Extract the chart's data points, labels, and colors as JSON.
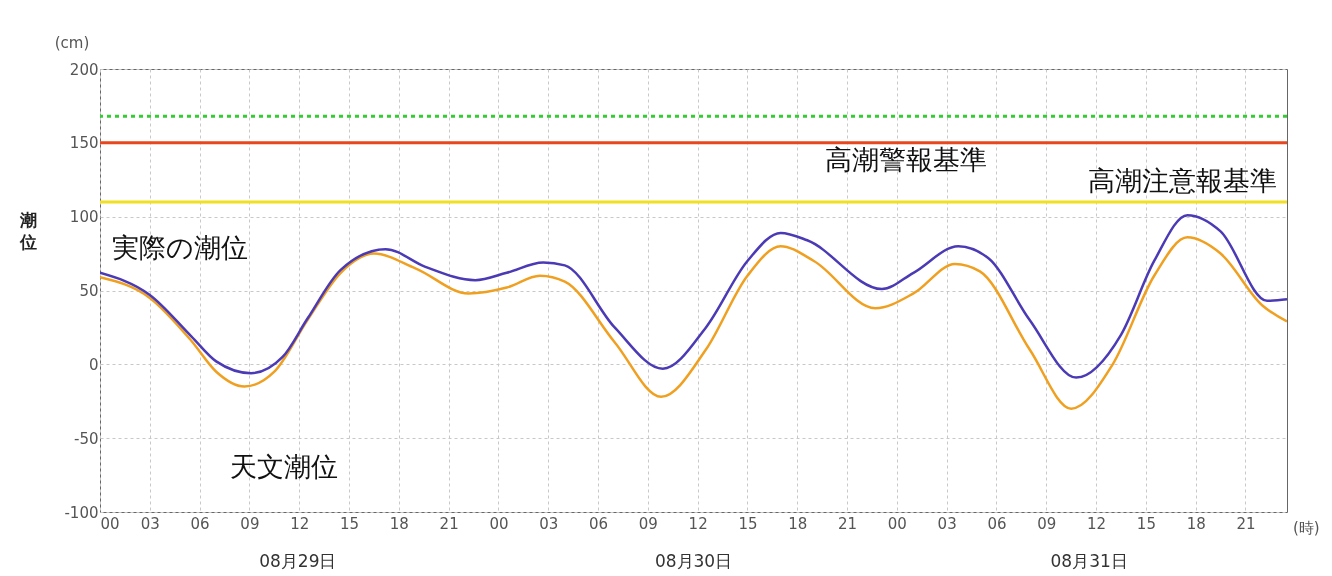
{
  "chart_data": {
    "type": "line",
    "ylabel": "潮位",
    "xlabel": "(時)",
    "annotations": [
      "(cm)",
      "08月29日",
      "08月30日",
      "08月31日"
    ],
    "xlim": [
      0,
      71.5
    ],
    "xticks": [
      {
        "value": 0,
        "label": "00"
      },
      {
        "value": 3,
        "label": "03"
      },
      {
        "value": 6,
        "label": "06"
      },
      {
        "value": 9,
        "label": "09"
      },
      {
        "value": 12,
        "label": "12"
      },
      {
        "value": 15,
        "label": "15"
      },
      {
        "value": 18,
        "label": "18"
      },
      {
        "value": 21,
        "label": "21"
      },
      {
        "value": 24,
        "label": "00"
      },
      {
        "value": 27,
        "label": "03"
      },
      {
        "value": 30,
        "label": "06"
      },
      {
        "value": 33,
        "label": "09"
      },
      {
        "value": 36,
        "label": "12"
      },
      {
        "value": 39,
        "label": "15"
      },
      {
        "value": 42,
        "label": "18"
      },
      {
        "value": 45,
        "label": "21"
      },
      {
        "value": 48,
        "label": "00"
      },
      {
        "value": 51,
        "label": "03"
      },
      {
        "value": 54,
        "label": "06"
      },
      {
        "value": 57,
        "label": "09"
      },
      {
        "value": 60,
        "label": "12"
      },
      {
        "value": 63,
        "label": "15"
      },
      {
        "value": 66,
        "label": "18"
      },
      {
        "value": 69,
        "label": "21"
      }
    ],
    "ylim": [
      -100,
      200
    ],
    "yticks": [
      -100,
      -50,
      0,
      50,
      100,
      150,
      200
    ],
    "grid": true,
    "legend": false,
    "series": [
      {
        "name": "天文潮位",
        "color": "#f0a020",
        "x": [
          0,
          3,
          5.5,
          7,
          8.7,
          10.5,
          12.5,
          14.5,
          16.5,
          19,
          22.2,
          24.5,
          26.5,
          28,
          31,
          33.8,
          36.5,
          39,
          41,
          43,
          46.7,
          49,
          51.5,
          53,
          56,
          58.5,
          61,
          63.5,
          65.5,
          67.5,
          70,
          71.5
        ],
        "values": [
          59,
          45,
          16,
          -5,
          -15,
          -5,
          30,
          62,
          75,
          65,
          48,
          52,
          60,
          56,
          15,
          -22,
          10,
          60,
          80,
          70,
          38,
          48,
          68,
          63,
          10,
          -30,
          0,
          60,
          86,
          75,
          40,
          29
        ]
      },
      {
        "name": "実際の潮位",
        "color": "#4b3ab5",
        "x": [
          0,
          3,
          5.5,
          7,
          9.1,
          11,
          12.5,
          14.5,
          17.2,
          19.6,
          22.6,
          24.5,
          26.7,
          28,
          31,
          33.9,
          36.5,
          39,
          41,
          42.6,
          47.1,
          49,
          51.7,
          53.5,
          56,
          58.8,
          61.5,
          63.5,
          65.5,
          67.5,
          70.3,
          71.5
        ],
        "values": [
          62,
          47,
          19,
          2,
          -6,
          5,
          31,
          64,
          78,
          66,
          57,
          62,
          69,
          67,
          25,
          -3,
          25,
          70,
          89,
          84,
          51,
          62,
          80,
          72,
          30,
          -9,
          20,
          70,
          101,
          90,
          43,
          44
        ]
      }
    ],
    "ref_lines": [
      {
        "axis": "y",
        "value": 168,
        "label": null,
        "color": "#33cc33",
        "line_style": "dotted"
      },
      {
        "axis": "y",
        "value": 150,
        "label": "高潮警報基準",
        "color": "#e8461e",
        "line_style": "solid"
      },
      {
        "axis": "y",
        "value": 110,
        "label": "高潮注意報基準",
        "color": "#f0e020",
        "line_style": "solid"
      }
    ]
  }
}
